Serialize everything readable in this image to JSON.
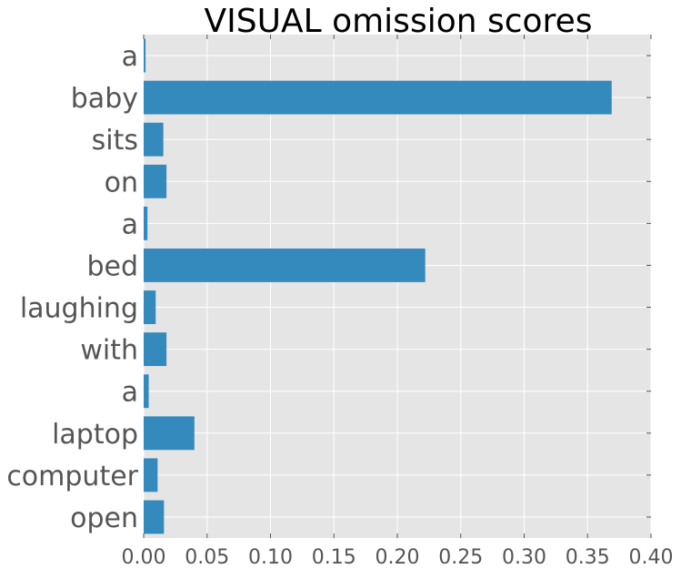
{
  "chart_data": {
    "type": "bar",
    "orientation": "horizontal",
    "title": "VISUAL omission scores",
    "xlabel": "",
    "ylabel": "",
    "categories": [
      "a",
      "baby",
      "sits",
      "on",
      "a",
      "bed",
      "laughing",
      "with",
      "a",
      "laptop",
      "computer",
      "open"
    ],
    "values": [
      0.0015,
      0.369,
      0.0155,
      0.018,
      0.003,
      0.222,
      0.0095,
      0.018,
      0.004,
      0.04,
      0.011,
      0.016
    ],
    "xlim": [
      0.0,
      0.4
    ],
    "xticks": [
      "0.00",
      "0.05",
      "0.10",
      "0.15",
      "0.20",
      "0.25",
      "0.30",
      "0.35",
      "0.40"
    ],
    "grid": true,
    "legend": "none",
    "colors": {
      "bar": "#348ABD",
      "plot_background": "#E5E5E5",
      "grid": "#FFFFFF",
      "tick_label": "#555555",
      "title": "#000000"
    }
  }
}
